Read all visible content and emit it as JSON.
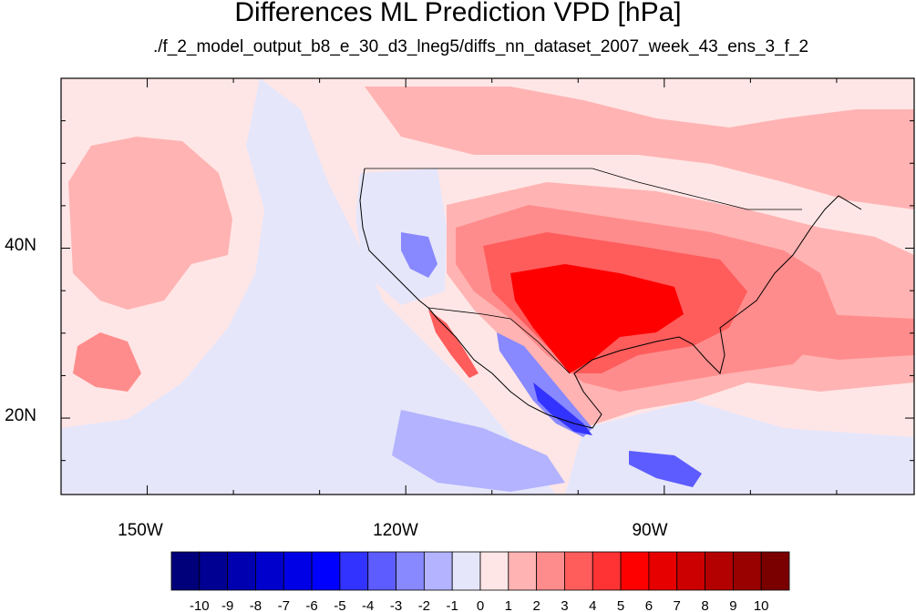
{
  "title": "Differences ML Prediction VPD [hPa]",
  "subtitle": "./f_2_model_output_b8_e_30_d3_lneg5/diffs_nn_dataset_2007_week_43_ens_3_f_2",
  "map": {
    "projection": "cylindrical-equidistant",
    "lon_range": [
      -160,
      -61
    ],
    "lat_range": [
      11,
      60
    ],
    "x_ticks": [
      {
        "lon": -150,
        "label": "150W"
      },
      {
        "lon": -120,
        "label": "120W"
      },
      {
        "lon": -90,
        "label": "90W"
      }
    ],
    "y_ticks": [
      {
        "lat": 40,
        "label": "40N"
      },
      {
        "lat": 20,
        "label": "20N"
      }
    ]
  },
  "colorbar": {
    "labels": [
      "-10",
      "-9",
      "-8",
      "-7",
      "-6",
      "-5",
      "-4",
      "-3",
      "-2",
      "-1",
      "0",
      "1",
      "2",
      "3",
      "4",
      "5",
      "6",
      "7",
      "8",
      "9",
      "10"
    ],
    "colors": [
      "#00007a",
      "#000093",
      "#0000b0",
      "#0000cc",
      "#0000e6",
      "#0000ff",
      "#3333ff",
      "#5c5cff",
      "#8888ff",
      "#b3b3ff",
      "#e6e6fa",
      "#ffe6e6",
      "#ffb3b3",
      "#ff8c8c",
      "#ff5c5c",
      "#ff3333",
      "#ff0000",
      "#e60000",
      "#cc0000",
      "#b30000",
      "#990000",
      "#7a0000"
    ]
  }
}
